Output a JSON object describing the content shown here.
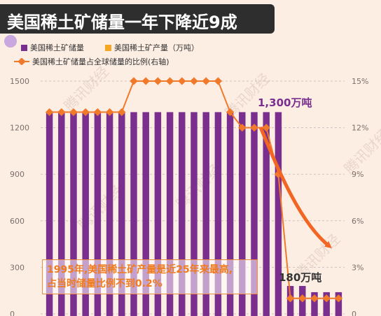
{
  "title": "美国稀土矿储量一年下降近9成",
  "legend": {
    "reserves": "美国稀土矿储量",
    "production": "美国稀土矿产量（万吨）",
    "share": "美国稀土矿储量占全球储量的比例(右轴)"
  },
  "annotations": {
    "high": "1,300万吨",
    "low": "180万吨",
    "note_line1": "1995年,美国稀土矿产量是近25年来最高,",
    "note_line2": "占当时储量比例不到0.2%"
  },
  "watermark": "腾讯财经",
  "colors": {
    "background": "#fdeee4",
    "reserves": "#7a2f8f",
    "production": "#f5a623",
    "share": "#f07a2a",
    "arrow": "#f26522",
    "highlight": "#7a2f8f"
  },
  "chart_data": {
    "type": "bar",
    "categories": [
      "",
      "",
      "",
      "",
      "",
      "",
      "",
      "",
      "",
      "",
      "",
      "",
      "",
      "",
      "",
      "",
      "",
      "",
      "",
      "",
      "",
      "",
      "",
      "",
      ""
    ],
    "series": [
      {
        "name": "美国稀土矿储量",
        "type": "bar",
        "axis": "left",
        "values": [
          1300,
          1300,
          1300,
          1300,
          1300,
          1300,
          1300,
          1300,
          1300,
          1300,
          1300,
          1300,
          1300,
          1300,
          1300,
          1300,
          1300,
          1300,
          1300,
          1300,
          180,
          180,
          140,
          140,
          140
        ]
      },
      {
        "name": "美国稀土矿储量占全球储量的比例(右轴)",
        "type": "line",
        "axis": "right",
        "values": [
          13,
          13,
          13,
          13,
          13,
          13,
          13,
          15,
          15,
          15,
          15,
          15,
          15,
          15,
          15,
          13,
          12,
          12,
          12,
          9,
          1,
          1,
          1,
          1,
          1
        ]
      }
    ],
    "y_left": {
      "ticks": [
        "0",
        "300",
        "600",
        "900",
        "1200",
        "1500"
      ],
      "ylim": [
        0,
        1500
      ]
    },
    "y_right": {
      "ticks": [
        "0",
        "3%",
        "6%",
        "9%",
        "12%",
        "15%"
      ],
      "ylim": [
        0,
        15
      ]
    }
  }
}
